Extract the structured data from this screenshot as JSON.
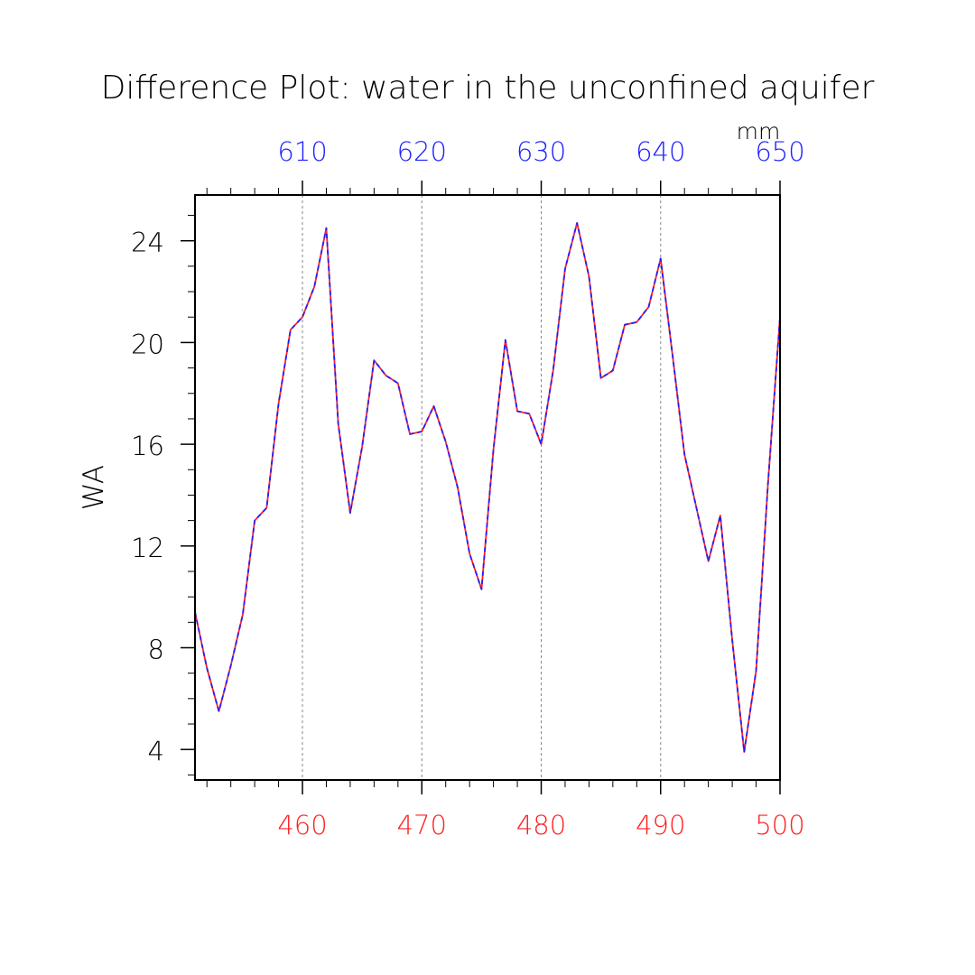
{
  "chart_data": {
    "type": "line",
    "title": "Difference Plot: water in the unconfined aquifer",
    "ylabel": "WA",
    "units_label": "mm",
    "ylim": [
      2.8,
      25.8
    ],
    "yticks": [
      {
        "value": 4,
        "label": "4"
      },
      {
        "value": 8,
        "label": "8"
      },
      {
        "value": 12,
        "label": "12"
      },
      {
        "value": 16,
        "label": "16"
      },
      {
        "value": 20,
        "label": "20"
      },
      {
        "value": 24,
        "label": "24"
      }
    ],
    "bottom_axis": {
      "color": "#ff2020",
      "range": [
        451,
        500
      ],
      "ticks": [
        {
          "value": 460,
          "label": "460"
        },
        {
          "value": 470,
          "label": "470"
        },
        {
          "value": 480,
          "label": "480"
        },
        {
          "value": 490,
          "label": "490"
        },
        {
          "value": 500,
          "label": "500"
        }
      ]
    },
    "top_axis": {
      "color": "#2020ff",
      "range": [
        601,
        650
      ],
      "ticks": [
        {
          "value": 610,
          "label": "610"
        },
        {
          "value": 620,
          "label": "620"
        },
        {
          "value": 630,
          "label": "630"
        },
        {
          "value": 640,
          "label": "640"
        },
        {
          "value": 650,
          "label": "650"
        }
      ]
    },
    "grid": "vertical dashed at major top/bottom ticks",
    "series": [
      {
        "axis": "bottom",
        "color": "#ff2020",
        "x": [
          451,
          452,
          453,
          454,
          455,
          456,
          457,
          458,
          459,
          460,
          461,
          462,
          463,
          464,
          465,
          466,
          467,
          468,
          469,
          470,
          471,
          472,
          473,
          474,
          475,
          476,
          477,
          478,
          479,
          480,
          481,
          482,
          483,
          484,
          485,
          486,
          487,
          488,
          489,
          490,
          491,
          492,
          493,
          494,
          495,
          496,
          497,
          498,
          499,
          500
        ],
        "y": [
          9.4,
          7.2,
          5.5,
          7.3,
          9.3,
          13.0,
          13.5,
          17.6,
          20.5,
          21.0,
          22.2,
          24.5,
          16.8,
          13.3,
          15.9,
          19.3,
          18.7,
          18.4,
          16.4,
          16.5,
          17.5,
          16.1,
          14.3,
          11.7,
          10.3,
          15.8,
          20.1,
          17.3,
          17.2,
          16.0,
          18.9,
          22.9,
          24.7,
          22.6,
          18.6,
          18.9,
          20.7,
          20.8,
          21.4,
          23.3,
          19.5,
          15.6,
          13.5,
          11.4,
          13.2,
          8.3,
          3.9,
          7.1,
          14.5,
          21.0
        ]
      },
      {
        "axis": "top",
        "color": "#2020ff",
        "x": [
          601,
          602,
          603,
          604,
          605,
          606,
          607,
          608,
          609,
          610,
          611,
          612,
          613,
          614,
          615,
          616,
          617,
          618,
          619,
          620,
          621,
          622,
          623,
          624,
          625,
          626,
          627,
          628,
          629,
          630,
          631,
          632,
          633,
          634,
          635,
          636,
          637,
          638,
          639,
          640,
          641,
          642,
          643,
          644,
          645,
          646,
          647,
          648,
          649,
          650
        ],
        "y": [
          9.4,
          7.2,
          5.5,
          7.3,
          9.3,
          13.0,
          13.5,
          17.6,
          20.5,
          21.0,
          22.2,
          24.5,
          16.8,
          13.3,
          15.9,
          19.3,
          18.7,
          18.4,
          16.4,
          16.5,
          17.5,
          16.1,
          14.3,
          11.7,
          10.3,
          15.8,
          20.1,
          17.3,
          17.2,
          16.0,
          18.9,
          22.9,
          24.7,
          22.6,
          18.6,
          18.9,
          20.7,
          20.8,
          21.4,
          23.3,
          19.5,
          15.6,
          13.5,
          11.4,
          13.2,
          8.3,
          3.9,
          7.1,
          14.5,
          21.0
        ]
      }
    ]
  }
}
